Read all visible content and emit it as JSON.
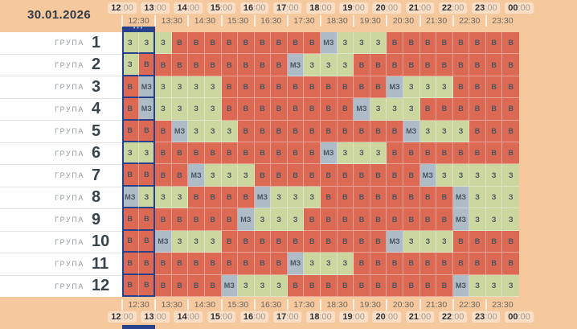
{
  "date": "30.01.2026",
  "time_axis": {
    "hours": [
      "12:00",
      "13:00",
      "14:00",
      "15:00",
      "16:00",
      "17:00",
      "18:00",
      "19:00",
      "20:00",
      "21:00",
      "22:00",
      "23:00",
      "00:00"
    ],
    "half_hours": [
      "12:30",
      "13:30",
      "14:30",
      "15:30",
      "16:30",
      "17:30",
      "18:30",
      "19:30",
      "20:30",
      "21:30",
      "22:30",
      "23:30"
    ]
  },
  "selection": {
    "hour_block_index": 0,
    "dots": "•••"
  },
  "states": {
    "З": {
      "color": "#ccd69f",
      "name": "powered-on"
    },
    "В": {
      "color": "#db6954",
      "name": "powered-off"
    },
    "МЗ": {
      "color": "#aebcc8",
      "name": "possible-outage"
    }
  },
  "groups": [
    {
      "label": "ГРУПА",
      "number": "1",
      "cells": [
        "З",
        "З",
        "З",
        "В",
        "В",
        "В",
        "В",
        "В",
        "В",
        "В",
        "В",
        "В",
        "МЗ",
        "З",
        "З",
        "З",
        "В",
        "В",
        "В",
        "В",
        "В",
        "В",
        "В",
        "В"
      ]
    },
    {
      "label": "ГРУПА",
      "number": "2",
      "cells": [
        "З",
        "В",
        "В",
        "В",
        "В",
        "В",
        "В",
        "В",
        "В",
        "В",
        "МЗ",
        "З",
        "З",
        "З",
        "В",
        "В",
        "В",
        "В",
        "В",
        "В",
        "В",
        "В",
        "В",
        "В"
      ]
    },
    {
      "label": "ГРУПА",
      "number": "3",
      "cells": [
        "В",
        "МЗ",
        "З",
        "З",
        "З",
        "З",
        "В",
        "В",
        "В",
        "В",
        "В",
        "В",
        "В",
        "В",
        "В",
        "В",
        "МЗ",
        "З",
        "З",
        "З",
        "В",
        "В",
        "В",
        "В"
      ]
    },
    {
      "label": "ГРУПА",
      "number": "4",
      "cells": [
        "В",
        "МЗ",
        "З",
        "З",
        "З",
        "З",
        "В",
        "В",
        "В",
        "В",
        "В",
        "В",
        "В",
        "В",
        "МЗ",
        "З",
        "З",
        "З",
        "В",
        "В",
        "В",
        "В",
        "В",
        "В"
      ]
    },
    {
      "label": "ГРУПА",
      "number": "5",
      "cells": [
        "В",
        "В",
        "В",
        "МЗ",
        "З",
        "З",
        "З",
        "В",
        "В",
        "В",
        "В",
        "В",
        "В",
        "В",
        "В",
        "В",
        "В",
        "МЗ",
        "З",
        "З",
        "З",
        "В",
        "В",
        "В"
      ]
    },
    {
      "label": "ГРУПА",
      "number": "6",
      "cells": [
        "З",
        "З",
        "В",
        "В",
        "В",
        "В",
        "В",
        "В",
        "В",
        "В",
        "В",
        "В",
        "МЗ",
        "З",
        "З",
        "З",
        "В",
        "В",
        "В",
        "В",
        "В",
        "В",
        "В",
        "В"
      ]
    },
    {
      "label": "ГРУПА",
      "number": "7",
      "cells": [
        "В",
        "В",
        "В",
        "В",
        "МЗ",
        "З",
        "З",
        "З",
        "В",
        "В",
        "В",
        "В",
        "В",
        "В",
        "В",
        "В",
        "В",
        "В",
        "МЗ",
        "З",
        "З",
        "З",
        "З",
        "З"
      ]
    },
    {
      "label": "ГРУПА",
      "number": "8",
      "cells": [
        "МЗ",
        "З",
        "З",
        "З",
        "В",
        "В",
        "В",
        "В",
        "МЗ",
        "З",
        "З",
        "З",
        "В",
        "В",
        "В",
        "В",
        "В",
        "В",
        "В",
        "В",
        "МЗ",
        "З",
        "З",
        "З"
      ]
    },
    {
      "label": "ГРУПА",
      "number": "9",
      "cells": [
        "В",
        "В",
        "В",
        "В",
        "В",
        "В",
        "В",
        "МЗ",
        "З",
        "З",
        "З",
        "В",
        "В",
        "В",
        "В",
        "В",
        "В",
        "В",
        "В",
        "В",
        "МЗ",
        "З",
        "З",
        "З"
      ]
    },
    {
      "label": "ГРУПА",
      "number": "10",
      "cells": [
        "В",
        "В",
        "МЗ",
        "З",
        "З",
        "З",
        "В",
        "В",
        "В",
        "В",
        "В",
        "В",
        "В",
        "В",
        "В",
        "В",
        "МЗ",
        "З",
        "З",
        "З",
        "В",
        "В",
        "В",
        "В"
      ]
    },
    {
      "label": "ГРУПА",
      "number": "11",
      "cells": [
        "В",
        "В",
        "В",
        "В",
        "В",
        "В",
        "В",
        "В",
        "В",
        "В",
        "МЗ",
        "З",
        "З",
        "З",
        "В",
        "В",
        "В",
        "В",
        "В",
        "В",
        "В",
        "В",
        "В",
        "В"
      ]
    },
    {
      "label": "ГРУПА",
      "number": "12",
      "cells": [
        "В",
        "В",
        "В",
        "В",
        "В",
        "В",
        "МЗ",
        "З",
        "З",
        "З",
        "В",
        "В",
        "В",
        "В",
        "В",
        "В",
        "В",
        "В",
        "В",
        "В",
        "МЗ",
        "З",
        "З",
        "З"
      ]
    }
  ]
}
